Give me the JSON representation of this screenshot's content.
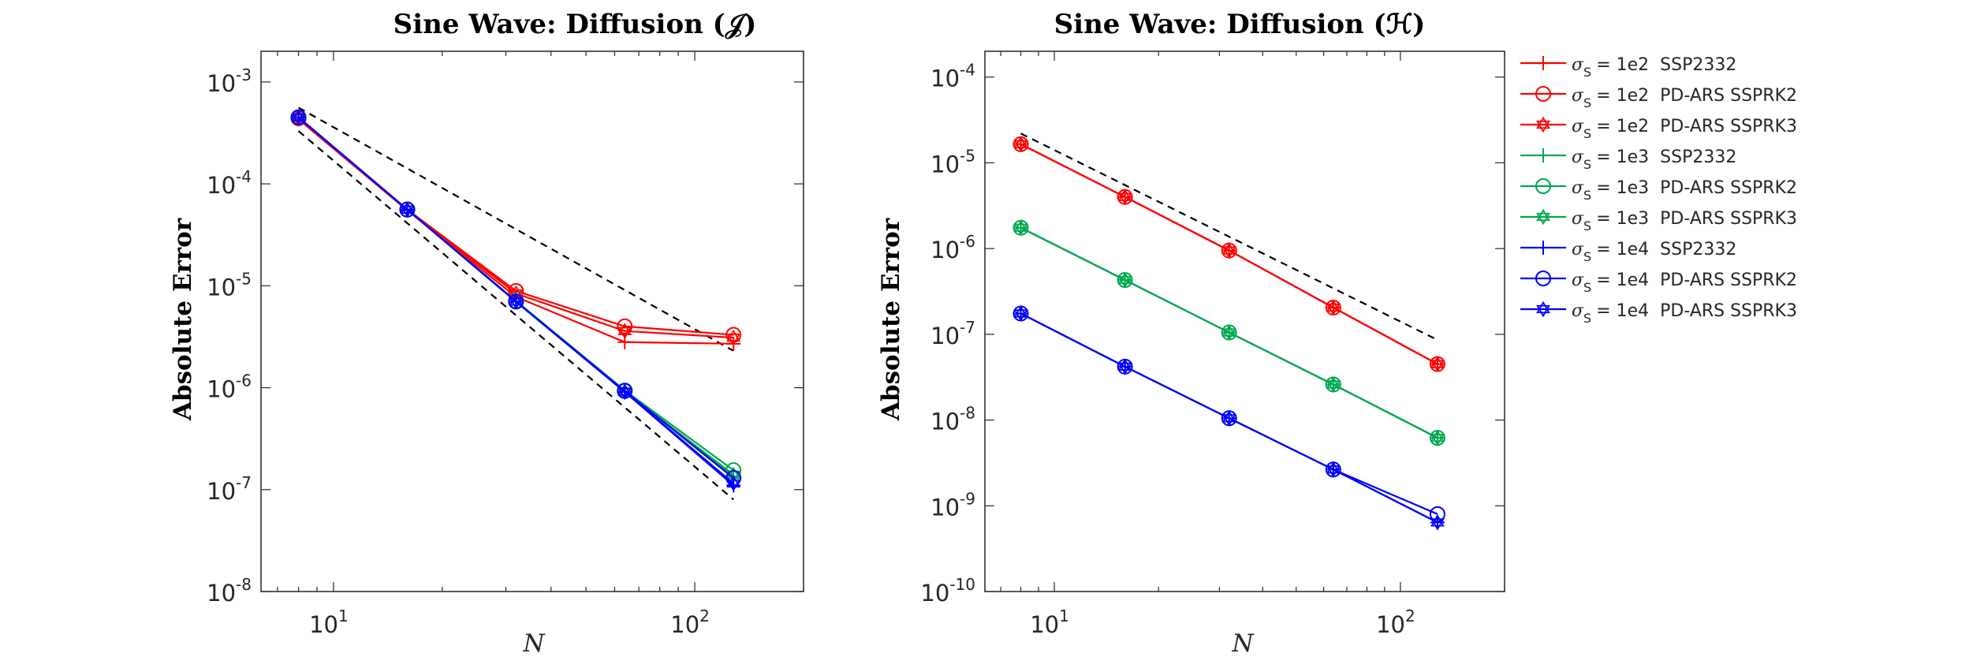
{
  "chart_data": [
    {
      "type": "line",
      "title": "Sine Wave: Diffusion (𝒥)",
      "xlabel": "N",
      "ylabel": "Absolute Error",
      "xscale": "log",
      "yscale": "log",
      "xlim": [
        6.3,
        200
      ],
      "ylim": [
        1e-08,
        0.002
      ],
      "xticks": [
        {
          "value": 10,
          "base": "10",
          "exp": "1"
        },
        {
          "value": 100,
          "base": "10",
          "exp": "2"
        }
      ],
      "yticks": [
        {
          "value": 1e-08,
          "base": "10",
          "exp": "-8"
        },
        {
          "value": 1e-07,
          "base": "10",
          "exp": "-7"
        },
        {
          "value": 1e-06,
          "base": "10",
          "exp": "-6"
        },
        {
          "value": 1e-05,
          "base": "10",
          "exp": "-5"
        },
        {
          "value": 0.0001,
          "base": "10",
          "exp": "-4"
        },
        {
          "value": 0.001,
          "base": "10",
          "exp": "-3"
        }
      ],
      "grid": false,
      "x": [
        8,
        16,
        32,
        64,
        128
      ],
      "series": [
        {
          "color": "#ff0000",
          "marker": "plus",
          "values": [
            0.00043,
            5.5e-05,
            7.8e-06,
            2.8e-06,
            2.7e-06
          ]
        },
        {
          "color": "#ff0000",
          "marker": "circle",
          "values": [
            0.00044,
            5.6e-05,
            8.9e-06,
            4e-06,
            3.3e-06
          ]
        },
        {
          "color": "#ff0000",
          "marker": "hexagram",
          "values": [
            0.00044,
            5.6e-05,
            8.4e-06,
            3.6e-06,
            3.1e-06
          ]
        },
        {
          "color": "#00a84f",
          "marker": "plus",
          "values": [
            0.00045,
            5.6e-05,
            7e-06,
            9.2e-07,
            1.35e-07
          ]
        },
        {
          "color": "#00a84f",
          "marker": "circle",
          "values": [
            0.00045,
            5.6e-05,
            7.1e-06,
            9.4e-07,
            1.55e-07
          ]
        },
        {
          "color": "#00a84f",
          "marker": "hexagram",
          "values": [
            0.00045,
            5.6e-05,
            7e-06,
            9.2e-07,
            1.4e-07
          ]
        },
        {
          "color": "#0000ff",
          "marker": "plus",
          "values": [
            0.00045,
            5.6e-05,
            7e-06,
            9.1e-07,
            1.1e-07
          ]
        },
        {
          "color": "#0000ff",
          "marker": "circle",
          "values": [
            0.00045,
            5.6e-05,
            7e-06,
            9.3e-07,
            1.3e-07
          ]
        },
        {
          "color": "#0000ff",
          "marker": "hexagram",
          "values": [
            0.00045,
            5.6e-05,
            7e-06,
            9.1e-07,
            1.15e-07
          ]
        }
      ],
      "reference_lines": [
        {
          "x": [
            8,
            128
          ],
          "y": [
            0.00056,
            2.3e-06
          ],
          "style": "dashed",
          "color": "#000000"
        },
        {
          "x": [
            8,
            128
          ],
          "y": [
            0.00033,
            8e-08
          ],
          "style": "dashed",
          "color": "#000000"
        }
      ]
    },
    {
      "type": "line",
      "title": "Sine Wave: Diffusion (ℋ)",
      "xlabel": "N",
      "ylabel": "Absolute Error",
      "xscale": "log",
      "yscale": "log",
      "xlim": [
        6.3,
        200
      ],
      "ylim": [
        1e-10,
        0.0002
      ],
      "xticks": [
        {
          "value": 10,
          "base": "10",
          "exp": "1"
        },
        {
          "value": 100,
          "base": "10",
          "exp": "2"
        }
      ],
      "yticks": [
        {
          "value": 1e-10,
          "base": "10",
          "exp": "-10"
        },
        {
          "value": 1e-09,
          "base": "10",
          "exp": "-9"
        },
        {
          "value": 1e-08,
          "base": "10",
          "exp": "-8"
        },
        {
          "value": 1e-07,
          "base": "10",
          "exp": "-7"
        },
        {
          "value": 1e-06,
          "base": "10",
          "exp": "-6"
        },
        {
          "value": 1e-05,
          "base": "10",
          "exp": "-5"
        },
        {
          "value": 0.0001,
          "base": "10",
          "exp": "-4"
        }
      ],
      "grid": false,
      "x": [
        8,
        16,
        32,
        64,
        128
      ],
      "series": [
        {
          "color": "#ff0000",
          "marker": "plus",
          "values": [
            1.65e-05,
            4e-06,
            9.5e-07,
            2.05e-07,
            4.5e-08
          ]
        },
        {
          "color": "#ff0000",
          "marker": "circle",
          "values": [
            1.65e-05,
            4e-06,
            9.5e-07,
            2.05e-07,
            4.5e-08
          ]
        },
        {
          "color": "#ff0000",
          "marker": "hexagram",
          "values": [
            1.65e-05,
            4e-06,
            9.5e-07,
            2.05e-07,
            4.5e-08
          ]
        },
        {
          "color": "#00a84f",
          "marker": "plus",
          "values": [
            1.75e-06,
            4.3e-07,
            1.05e-07,
            2.6e-08,
            6.2e-09
          ]
        },
        {
          "color": "#00a84f",
          "marker": "circle",
          "values": [
            1.75e-06,
            4.3e-07,
            1.05e-07,
            2.6e-08,
            6.2e-09
          ]
        },
        {
          "color": "#00a84f",
          "marker": "hexagram",
          "values": [
            1.75e-06,
            4.3e-07,
            1.05e-07,
            2.6e-08,
            6.2e-09
          ]
        },
        {
          "color": "#0000ff",
          "marker": "plus",
          "values": [
            1.75e-07,
            4.2e-08,
            1.05e-08,
            2.65e-09,
            6.4e-10
          ]
        },
        {
          "color": "#0000ff",
          "marker": "circle",
          "values": [
            1.75e-07,
            4.2e-08,
            1.05e-08,
            2.65e-09,
            8e-10
          ]
        },
        {
          "color": "#0000ff",
          "marker": "hexagram",
          "values": [
            1.75e-07,
            4.2e-08,
            1.05e-08,
            2.65e-09,
            6.4e-10
          ]
        }
      ],
      "reference_lines": [
        {
          "x": [
            8,
            128
          ],
          "y": [
            2.2e-05,
            8.6e-08
          ],
          "style": "dashed",
          "color": "#000000"
        }
      ]
    }
  ],
  "legend": {
    "placement": "right, outside plot area",
    "entries": [
      {
        "sigma": "σ",
        "sub": "S",
        "value": "= 1e2",
        "scheme": "SSP2332",
        "color": "#ff0000",
        "marker": "plus"
      },
      {
        "sigma": "σ",
        "sub": "S",
        "value": "= 1e2",
        "scheme": "PD-ARS SSPRK2",
        "color": "#ff0000",
        "marker": "circle"
      },
      {
        "sigma": "σ",
        "sub": "S",
        "value": "= 1e2",
        "scheme": "PD-ARS SSPRK3",
        "color": "#ff0000",
        "marker": "hexagram"
      },
      {
        "sigma": "σ",
        "sub": "S",
        "value": "= 1e3",
        "scheme": "SSP2332",
        "color": "#00a84f",
        "marker": "plus"
      },
      {
        "sigma": "σ",
        "sub": "S",
        "value": "= 1e3",
        "scheme": "PD-ARS SSPRK2",
        "color": "#00a84f",
        "marker": "circle"
      },
      {
        "sigma": "σ",
        "sub": "S",
        "value": "= 1e3",
        "scheme": "PD-ARS SSPRK3",
        "color": "#00a84f",
        "marker": "hexagram"
      },
      {
        "sigma": "σ",
        "sub": "S",
        "value": "= 1e4",
        "scheme": "SSP2332",
        "color": "#0000ff",
        "marker": "plus"
      },
      {
        "sigma": "σ",
        "sub": "S",
        "value": "= 1e4",
        "scheme": "PD-ARS SSPRK2",
        "color": "#0000ff",
        "marker": "circle"
      },
      {
        "sigma": "σ",
        "sub": "S",
        "value": "= 1e4",
        "scheme": "PD-ARS SSPRK3",
        "color": "#0000ff",
        "marker": "hexagram"
      }
    ]
  }
}
